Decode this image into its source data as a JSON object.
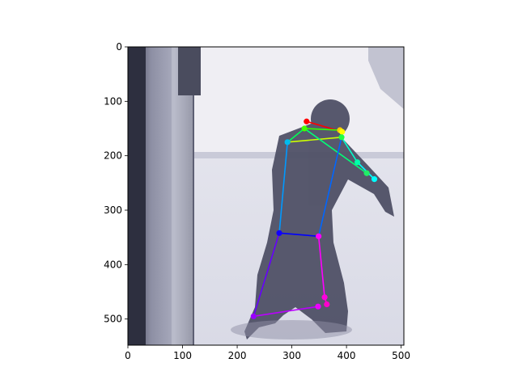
{
  "chart_data": {
    "type": "scatter",
    "title": "",
    "xlabel": "",
    "ylabel": "",
    "xlim": [
      0,
      505
    ],
    "ylim": [
      548,
      0
    ],
    "grid": false,
    "background": "photo of a person (pose estimation overlay)",
    "x_ticks": [
      "0",
      "100",
      "200",
      "300",
      "400",
      "500"
    ],
    "y_ticks": [
      "0",
      "100",
      "200",
      "300",
      "400",
      "500"
    ],
    "x_tick_values": [
      0,
      100,
      200,
      300,
      400,
      500
    ],
    "y_tick_values": [
      0,
      100,
      200,
      300,
      400,
      500
    ],
    "keypoints": [
      {
        "name": "nose",
        "x": 327,
        "y": 137,
        "color": "#ff0000"
      },
      {
        "name": "head-right-a",
        "x": 388,
        "y": 153,
        "color": "#ffcc00"
      },
      {
        "name": "head-right-b",
        "x": 392,
        "y": 156,
        "color": "#ffff00"
      },
      {
        "name": "neck",
        "x": 323,
        "y": 150,
        "color": "#44ff00"
      },
      {
        "name": "shoulder-b",
        "x": 391,
        "y": 166,
        "color": "#22ff44"
      },
      {
        "name": "shoulder-a",
        "x": 292,
        "y": 175,
        "color": "#00bbee"
      },
      {
        "name": "elbow",
        "x": 420,
        "y": 212,
        "color": "#00ffaa"
      },
      {
        "name": "wrist-a",
        "x": 437,
        "y": 232,
        "color": "#22ee66"
      },
      {
        "name": "wrist-b",
        "x": 451,
        "y": 243,
        "color": "#00ffff"
      },
      {
        "name": "hip-a",
        "x": 277,
        "y": 342,
        "color": "#1100ff"
      },
      {
        "name": "hip-b",
        "x": 349,
        "y": 348,
        "color": "#ff00ff"
      },
      {
        "name": "knee-b",
        "x": 360,
        "y": 460,
        "color": "#ff00dd"
      },
      {
        "name": "knee-c",
        "x": 364,
        "y": 473,
        "color": "#ff00cc"
      },
      {
        "name": "ankle-b",
        "x": 348,
        "y": 477,
        "color": "#ee00ff"
      },
      {
        "name": "ankle-a",
        "x": 230,
        "y": 495,
        "color": "#9900ff"
      }
    ],
    "limbs": [
      {
        "from": "nose",
        "to": "head-right-b",
        "color": "#ff0000"
      },
      {
        "from": "neck",
        "to": "head-right-a",
        "color": "#33ff00"
      },
      {
        "from": "neck",
        "to": "shoulder-a",
        "color": "#00ff55"
      },
      {
        "from": "shoulder-a",
        "to": "shoulder-b",
        "color": "#ccff00"
      },
      {
        "from": "neck",
        "to": "wrist-a",
        "color": "#00ff77"
      },
      {
        "from": "shoulder-b",
        "to": "elbow",
        "color": "#00ffcc"
      },
      {
        "from": "elbow",
        "to": "wrist-b",
        "color": "#00ffff"
      },
      {
        "from": "shoulder-a",
        "to": "hip-a",
        "color": "#0099ff"
      },
      {
        "from": "shoulder-b",
        "to": "hip-b",
        "color": "#0066ff"
      },
      {
        "from": "hip-a",
        "to": "hip-b",
        "color": "#0000ff"
      },
      {
        "from": "hip-a",
        "to": "ankle-a",
        "color": "#6600ff"
      },
      {
        "from": "ankle-a",
        "to": "ankle-b",
        "color": "#bb00ff"
      },
      {
        "from": "hip-b",
        "to": "knee-b",
        "color": "#ff00ff"
      },
      {
        "from": "knee-b",
        "to": "knee-c",
        "color": "#ff00cc"
      }
    ]
  }
}
